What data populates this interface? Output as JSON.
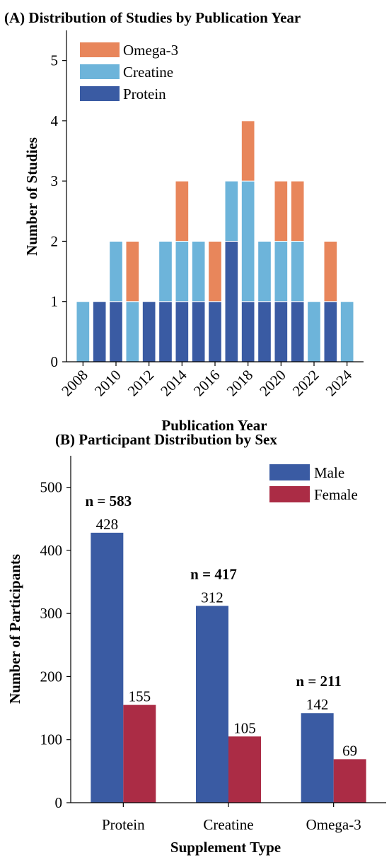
{
  "chart_data": [
    {
      "type": "bar",
      "stacked": true,
      "title": "(A)  Distribution of Studies by Publication Year",
      "xlabel": "Publication Year",
      "ylabel": "Number of Studies",
      "ylim": [
        0,
        5.5
      ],
      "yticks": [
        "0",
        "1",
        "2",
        "3",
        "4",
        "5"
      ],
      "xlim": [
        2007,
        2025
      ],
      "xticks": [
        "2008",
        "2010",
        "2012",
        "2014",
        "2016",
        "2018",
        "2020",
        "2022",
        "2024"
      ],
      "years": [
        2008,
        2009,
        2010,
        2011,
        2012,
        2013,
        2014,
        2015,
        2016,
        2017,
        2018,
        2019,
        2020,
        2021,
        2022,
        2023,
        2024
      ],
      "legend_position": "top-left",
      "series": [
        {
          "name": "Protein",
          "color": "#3a5ba3",
          "values": [
            0,
            1,
            1,
            0,
            1,
            1,
            1,
            1,
            1,
            2,
            1,
            1,
            1,
            1,
            0,
            1,
            0
          ]
        },
        {
          "name": "Creatine",
          "color": "#6db4da",
          "values": [
            1,
            0,
            1,
            1,
            0,
            1,
            1,
            1,
            0,
            1,
            2,
            1,
            1,
            1,
            1,
            0,
            1
          ]
        },
        {
          "name": "Omega-3",
          "color": "#e8865b",
          "values": [
            0,
            0,
            0,
            1,
            0,
            0,
            1,
            0,
            1,
            0,
            1,
            0,
            1,
            1,
            0,
            1,
            0
          ]
        }
      ],
      "legend_order": [
        "Omega-3",
        "Creatine",
        "Protein"
      ]
    },
    {
      "type": "bar",
      "grouped": true,
      "title": "(B)   Participant Distribution by Sex",
      "xlabel": "Supplement Type",
      "ylabel": "Number of Participants",
      "ylim": [
        0,
        550
      ],
      "yticks": [
        "0",
        "100",
        "200",
        "300",
        "400",
        "500"
      ],
      "categories": [
        "Protein",
        "Creatine",
        "Omega-3"
      ],
      "legend_position": "top-right",
      "series": [
        {
          "name": "Male",
          "color": "#3a5ba3",
          "values": [
            428,
            312,
            142
          ]
        },
        {
          "name": "Female",
          "color": "#ab2c45",
          "values": [
            155,
            105,
            69
          ]
        }
      ],
      "value_labels": {
        "male": [
          "428",
          "312",
          "142"
        ],
        "female": [
          "155",
          "105",
          "69"
        ]
      },
      "totals": [
        "n = 583",
        "n = 417",
        "n = 211"
      ]
    }
  ]
}
